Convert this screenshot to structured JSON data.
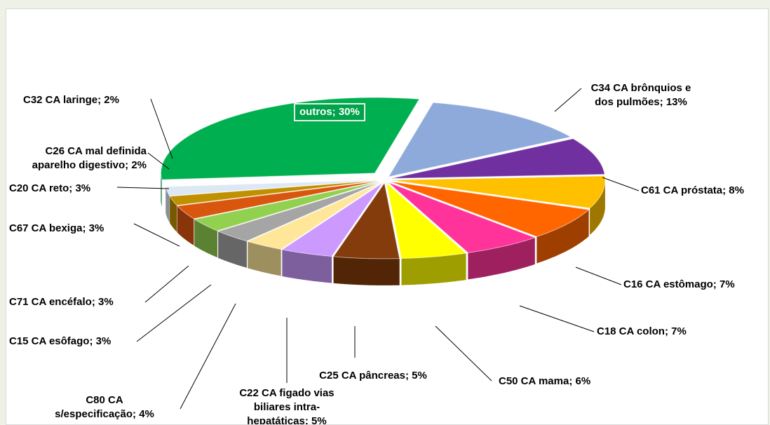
{
  "chart_data": {
    "type": "pie3d",
    "values": [
      13,
      8,
      7,
      7,
      6,
      5,
      5,
      4,
      3,
      3,
      3,
      3,
      2,
      2,
      30
    ],
    "value_labels": [
      "C34   CA brônquios e\ndos pulmões; 13%",
      "C61   CA próstata; 8%",
      "C16   CA estômago; 7%",
      "C18   CA colon; 7%",
      "C50   CA mama; 6%",
      "C25   CA pâncreas; 5%",
      "C22   CA figado vias\nbiliares intra-\nhepatáticas; 5%",
      "C80  CA\ns/especificação; 4%",
      "C15  CA esôfago; 3%",
      "C71   CA encéfalo; 3%",
      "C67   CA bexiga; 3%",
      "C20   CA reto; 3%",
      "C26   CA  mal definida\naparelho digestivo; 2%",
      "C32   CA laringe; 2%",
      "outros; 30%"
    ],
    "colors": [
      "#8eaadb",
      "#7030a0",
      "#ffc000",
      "#ff6600",
      "#ff3399",
      "#ffff00",
      "#843c0c",
      "#cc99ff",
      "#ffe699",
      "#a5a5a5",
      "#92d050",
      "#d9560f",
      "#bf9000",
      "#dde8f5",
      "#00b050"
    ]
  }
}
